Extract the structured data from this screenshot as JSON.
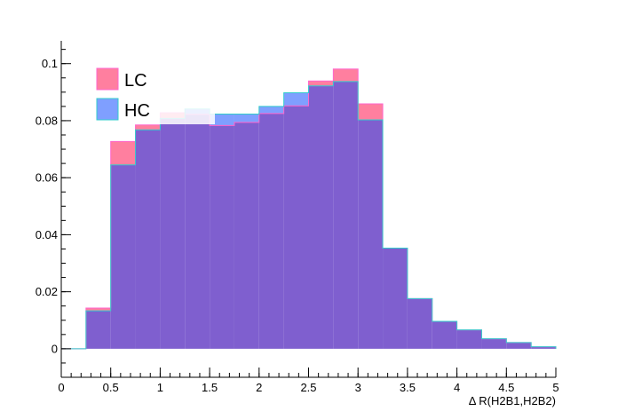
{
  "chart_data": {
    "type": "histogram",
    "xlabel": "Δ R(H2B1,H2B2)",
    "xlim": [
      0,
      5
    ],
    "ylim": [
      -0.01,
      0.108
    ],
    "bin_edges": [
      0,
      0.25,
      0.5,
      0.75,
      1.0,
      1.25,
      1.5,
      1.75,
      2.0,
      2.25,
      2.5,
      2.75,
      3.0,
      3.25,
      3.5,
      3.75,
      4.0,
      4.25,
      4.5,
      4.75,
      5.0
    ],
    "x_ticks": [
      0,
      0.5,
      1,
      1.5,
      2,
      2.5,
      3,
      3.5,
      4,
      4.5,
      5
    ],
    "x_tick_labels": [
      "0",
      "0.5",
      "1",
      "1.5",
      "2",
      "2.5",
      "3",
      "3.5",
      "4",
      "4.5",
      "5"
    ],
    "y_ticks": [
      0,
      0.02,
      0.04,
      0.06,
      0.08,
      0.1
    ],
    "y_tick_labels": [
      "0",
      "0.02",
      "0.04",
      "0.06",
      "0.08",
      "0.1"
    ],
    "grid": false,
    "legend_position": "top-left",
    "series": [
      {
        "name": "LC",
        "color": "#ff7f9f",
        "values": [
          0.0,
          0.0143,
          0.0727,
          0.0785,
          0.0828,
          0.0822,
          0.0783,
          0.0794,
          0.0825,
          0.0852,
          0.0939,
          0.0981,
          0.0859,
          0.0353,
          0.0176,
          0.0096,
          0.0066,
          0.0035,
          0.0022,
          0.0007
        ]
      },
      {
        "name": "HC",
        "color": "#7f9fff",
        "values": [
          0.0,
          0.0133,
          0.0645,
          0.0768,
          0.0808,
          0.0841,
          0.0823,
          0.0823,
          0.085,
          0.0898,
          0.0922,
          0.0937,
          0.0803,
          0.0353,
          0.0176,
          0.0096,
          0.0066,
          0.0035,
          0.0022,
          0.0007
        ]
      }
    ],
    "overlap_color": "#7f5fcf",
    "outline_color": "#33cccc",
    "lc_outline_color": "#ff66cc"
  }
}
